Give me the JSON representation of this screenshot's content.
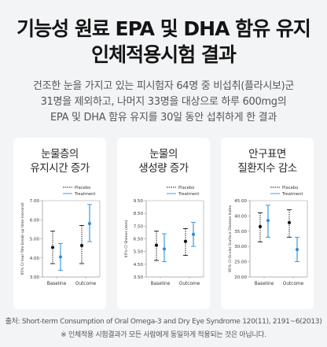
{
  "title": {
    "line1": "기능성 원료 EPA 및 DHA 함유 유지",
    "line2": "인체적용시험 결과"
  },
  "description": {
    "line1": "건조한 눈을 가지고 있는 피시험자 64명 중 비섭취(플라시보)군",
    "line2": "31명을 제외하고, 나머지 33명을 대상으로 하루 600mg의",
    "line3": "EPA 및 DHA 함유 유지를 30일 동안 섭취하게 한 결과"
  },
  "colors": {
    "placebo": "#111111",
    "treatment": "#2f8fdd",
    "axis": "#9a9a9a"
  },
  "chart_data": [
    {
      "type": "scatter",
      "title_line1": "눈물층의",
      "title_line2": "유지시간 증가",
      "ylabel": "95% CI tear film break-up time (second)",
      "categories": [
        "Baseline",
        "Outcome"
      ],
      "ylim": [
        3.0,
        7.0
      ],
      "yticks": [
        "3.00",
        "4.00",
        "5.00",
        "6.00",
        "7.00"
      ],
      "legend": [
        "Placebo",
        "Treatment"
      ],
      "series": [
        {
          "name": "Placebo",
          "values": [
            4.55,
            4.65
          ],
          "lower": [
            3.7,
            3.7
          ],
          "upper": [
            5.4,
            5.7
          ]
        },
        {
          "name": "Treatment",
          "values": [
            4.05,
            5.8
          ],
          "lower": [
            3.35,
            4.85
          ],
          "upper": [
            4.75,
            6.8
          ]
        }
      ]
    },
    {
      "type": "scatter",
      "title_line1": "눈물의",
      "title_line2": "생성량 증가",
      "ylabel": "95% CI Shimer (mm)",
      "categories": [
        "Baseline",
        "Outcome"
      ],
      "ylim": [
        3.5,
        9.5
      ],
      "yticks": [
        "3.50",
        "4.50",
        "5.50",
        "6.50",
        "7.50",
        "8.50",
        "9.50"
      ],
      "legend": [
        "Placebo",
        "Treatment"
      ],
      "series": [
        {
          "name": "Placebo",
          "values": [
            6.0,
            6.3
          ],
          "lower": [
            4.8,
            5.2
          ],
          "upper": [
            7.1,
            7.3
          ]
        },
        {
          "name": "Treatment",
          "values": [
            5.7,
            6.85
          ],
          "lower": [
            4.7,
            5.9
          ],
          "upper": [
            6.9,
            7.8
          ]
        }
      ]
    },
    {
      "type": "scatter",
      "title_line1": "안구표면",
      "title_line2": "질환지수 감소",
      "ylabel": "95% CI Ocular Surface Disease Index",
      "categories": [
        "Baseline",
        "Outcome"
      ],
      "ylim": [
        20.0,
        45.0
      ],
      "yticks": [
        "20.00",
        "25.00",
        "30.00",
        "35.00",
        "40.00",
        "45.00"
      ],
      "legend": [
        "Placebo",
        "Treatment"
      ],
      "series": [
        {
          "name": "Placebo",
          "values": [
            36.5,
            37.8
          ],
          "lower": [
            31.5,
            33.0
          ],
          "upper": [
            41.0,
            42.0
          ]
        },
        {
          "name": "Treatment",
          "values": [
            38.5,
            29.0
          ],
          "lower": [
            33.0,
            25.0
          ],
          "upper": [
            43.5,
            33.0
          ]
        }
      ]
    }
  ],
  "source": "출처: Short-term Consumption of Oral Omega-3 and Dry Eye Syndrome 120(11), 2191~6(2013)",
  "note": "※ 인체적용 시험결과가 모든 사람에게 동일하게 적용되는 것은 아닙니다."
}
